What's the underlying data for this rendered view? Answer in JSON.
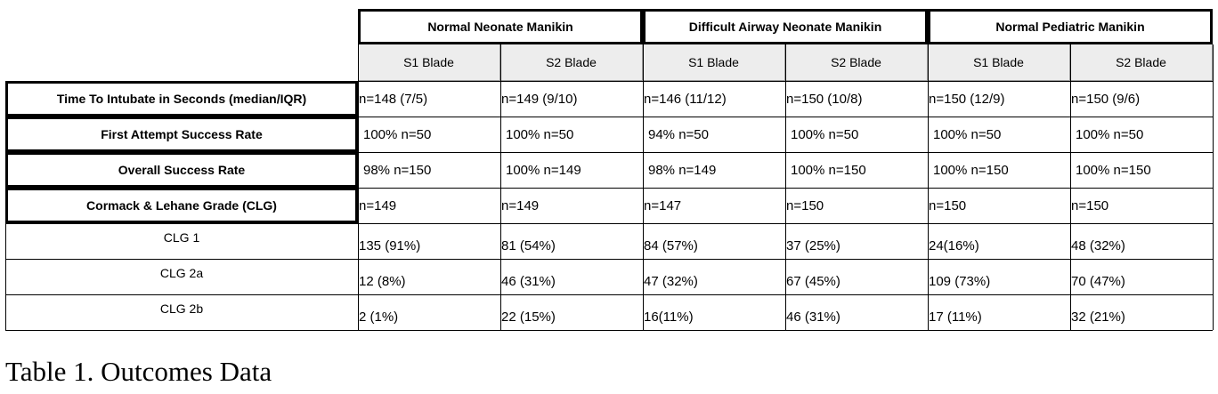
{
  "table": {
    "groups": [
      "Normal Neonate Manikin",
      "Difficult Airway Neonate Manikin",
      "Normal Pediatric Manikin"
    ],
    "subheaders": [
      "S1 Blade",
      "S2 Blade",
      "S1 Blade",
      "S2 Blade",
      "S1 Blade",
      "S2 Blade"
    ],
    "rows": [
      {
        "label": "Time To Intubate in Seconds (median/IQR)",
        "cells": [
          "n=148 (7/5)",
          "n=149 (9/10)",
          "n=146 (11/12)",
          "n=150 (10/8)",
          "n=150 (12/9)",
          "n=150 (9/6)"
        ]
      },
      {
        "label": "First Attempt Success Rate",
        "cells": [
          "100%  n=50",
          "100%  n=50",
          "94%  n=50",
          "100%  n=50",
          "100%  n=50",
          "100%  n=50"
        ]
      },
      {
        "label": "Overall Success Rate",
        "cells": [
          "98% n=150",
          "100%  n=149",
          "98%  n=149",
          "100%  n=150",
          "100%  n=150",
          "100%  n=150"
        ]
      },
      {
        "label": "Cormack & Lehane Grade (CLG)",
        "cells": [
          "n=149",
          "n=149",
          "n=147",
          "n=150",
          "n=150",
          "n=150"
        ]
      },
      {
        "label": "CLG 1",
        "cells": [
          "135 (91%)",
          "81 (54%)",
          "84 (57%)",
          "37 (25%)",
          "24(16%)",
          "48 (32%)"
        ]
      },
      {
        "label": "CLG 2a",
        "cells": [
          "12 (8%)",
          "46 (31%)",
          "47 (32%)",
          "67 (45%)",
          "109 (73%)",
          "70 (47%)"
        ]
      },
      {
        "label": "CLG 2b",
        "cells": [
          "2 (1%)",
          "22 (15%)",
          "16(11%)",
          "46 (31%)",
          "17 (11%)",
          "32 (21%)"
        ]
      }
    ]
  },
  "caption": "Table 1. Outcomes Data"
}
